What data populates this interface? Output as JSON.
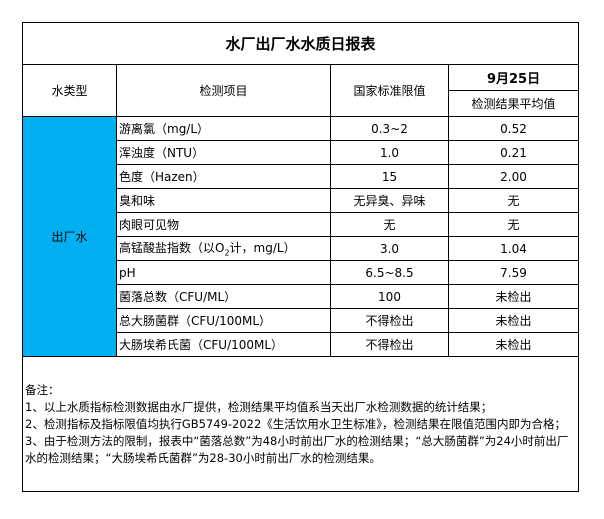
{
  "title": "水厂出厂水水质日报表",
  "headers": {
    "water_type": "水类型",
    "item": "检测项目",
    "standard": "国家标准限值",
    "date": "9月25日",
    "result": "检测结果平均值"
  },
  "category": "出厂水",
  "rows": [
    {
      "item": "游离氯（mg/L）",
      "standard": "0.3~2",
      "result": "0.52"
    },
    {
      "item": "浑浊度（NTU）",
      "standard": "1.0",
      "result": "0.21"
    },
    {
      "item": "色度（Hazen）",
      "standard": "15",
      "result": "2.00"
    },
    {
      "item": "臭和味",
      "standard": "无异臭、异味",
      "result": "无"
    },
    {
      "item": "肉眼可见物",
      "standard": "无",
      "result": "无"
    },
    {
      "item_pre": "高锰酸盐指数（以O",
      "item_sub": "2",
      "item_post": "计，mg/L）",
      "standard": "3.0",
      "result": "1.04"
    },
    {
      "item": "pH",
      "standard": "6.5~8.5",
      "result": "7.59"
    },
    {
      "item": "菌落总数（CFU/ML）",
      "standard": "100",
      "result": "未检出"
    },
    {
      "item": "总大肠菌群（CFU/100ML）",
      "standard": "不得检出",
      "result": "未检出"
    },
    {
      "item": "大肠埃希氏菌（CFU/100ML）",
      "standard": "不得检出",
      "result": "未检出"
    }
  ],
  "notes": {
    "heading": "备注：",
    "lines": [
      "1、以上水质指标检测数据由水厂提供，检测结果平均值系当天出厂水检测数据的统计结果；",
      "2、检测指标及指标限值均执行GB5749-2022《生活饮用水卫生标准》，检测结果在限值范围内即为合格；",
      "3、由于检测方法的限制，报表中“菌落总数”为48小时前出厂水的检测结果；“总大肠菌群”为24小时前出厂水的检测结果；“大肠埃希氏菌群”为28-30小时前出厂水的检测结果。"
    ]
  },
  "colors": {
    "category_fill": "#00b0f0"
  }
}
